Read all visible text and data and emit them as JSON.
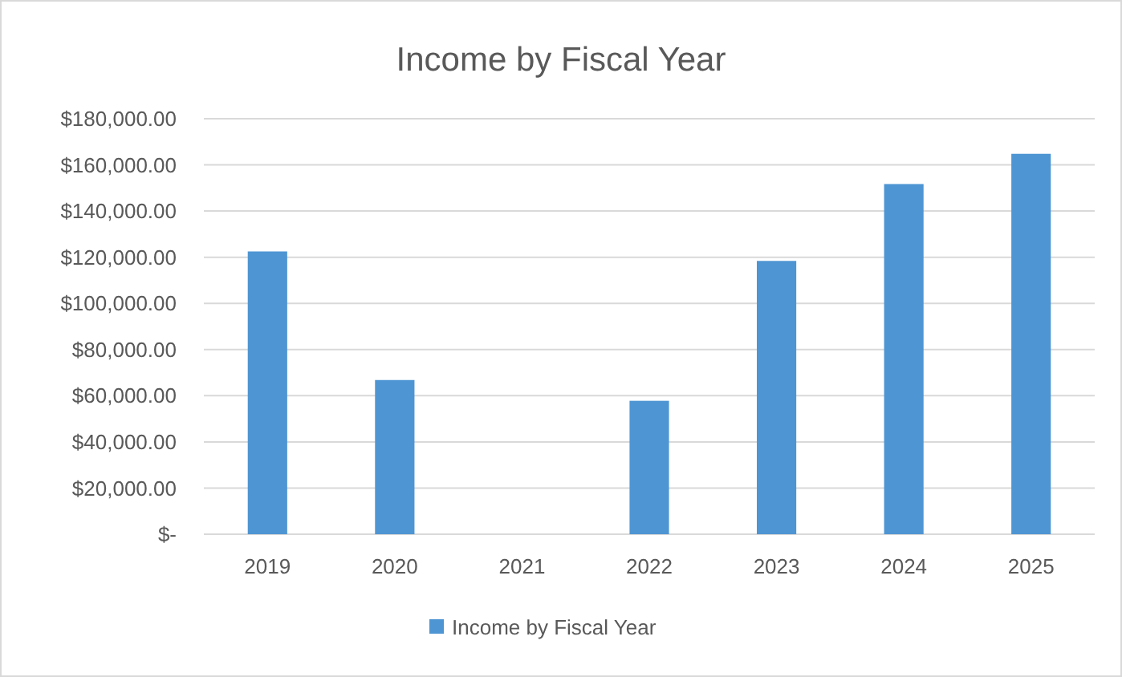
{
  "chart_data": {
    "type": "bar",
    "title": "Income by Fiscal Year",
    "categories": [
      "2019",
      "2020",
      "2021",
      "2022",
      "2023",
      "2024",
      "2025"
    ],
    "series": [
      {
        "name": "Income by Fiscal Year",
        "color": "#4e95d3",
        "values": [
          122500,
          66800,
          0,
          57800,
          118400,
          151700,
          164800
        ]
      }
    ],
    "ylim": [
      0,
      180000
    ],
    "yticks": [
      {
        "value": 0,
        "label": "$-"
      },
      {
        "value": 20000,
        "label": "$20,000.00"
      },
      {
        "value": 40000,
        "label": "$40,000.00"
      },
      {
        "value": 60000,
        "label": "$60,000.00"
      },
      {
        "value": 80000,
        "label": "$80,000.00"
      },
      {
        "value": 100000,
        "label": "$100,000.00"
      },
      {
        "value": 120000,
        "label": "$120,000.00"
      },
      {
        "value": 140000,
        "label": "$140,000.00"
      },
      {
        "value": 160000,
        "label": "$160,000.00"
      },
      {
        "value": 180000,
        "label": "$180,000.00"
      }
    ],
    "grid": "y",
    "legend": "bottom"
  }
}
